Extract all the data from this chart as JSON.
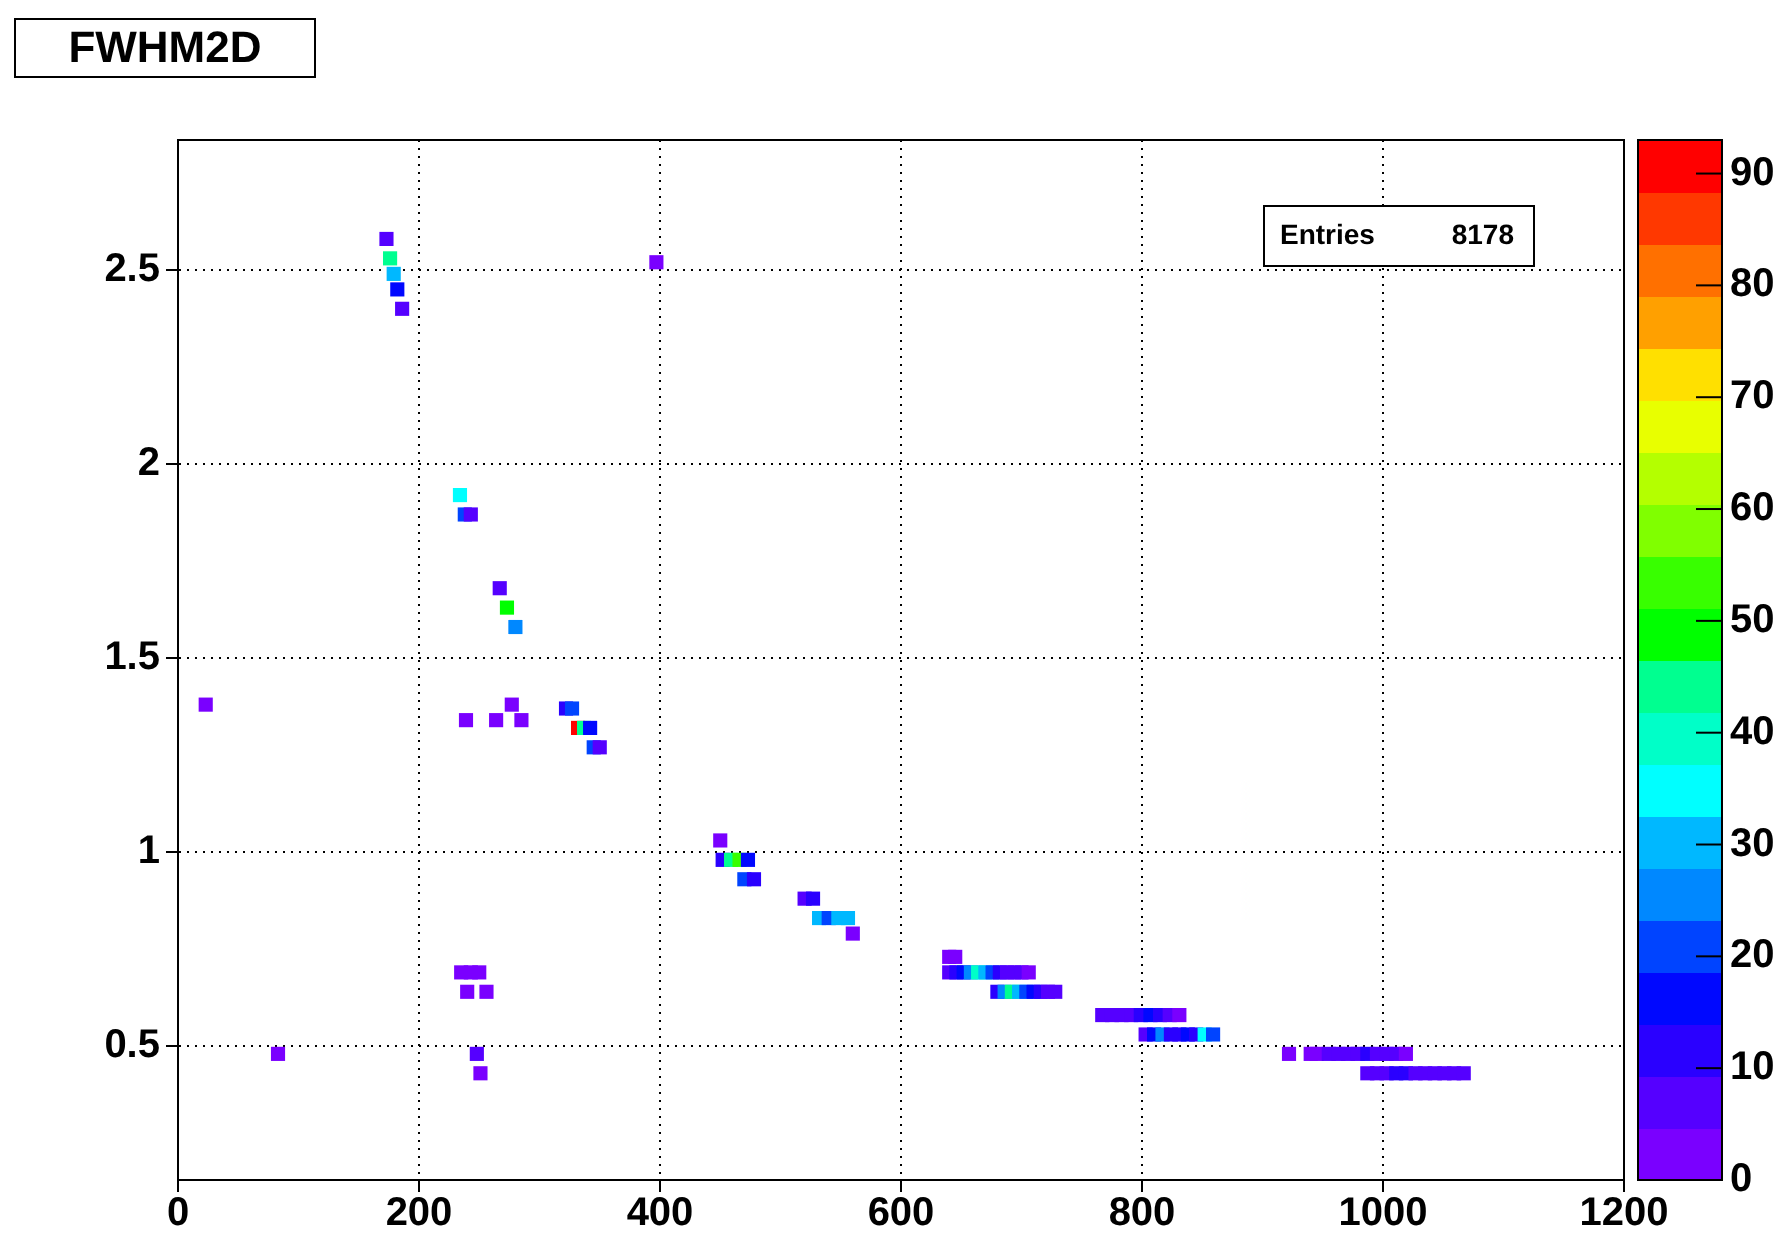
{
  "chart_data": {
    "type": "scatter",
    "title": "FWHM2D",
    "annotations": [
      "Entries",
      "8178"
    ],
    "xlim": [
      0,
      1200
    ],
    "xticks": [
      0,
      200,
      400,
      600,
      800,
      1000,
      1200
    ],
    "ylim": [
      0.155,
      2.835
    ],
    "yticks": [
      {
        "value": 0.5,
        "label": "0.5"
      },
      1,
      {
        "value": 1.5,
        "label": "1.5"
      },
      2,
      {
        "value": 2.5,
        "label": "2.5"
      }
    ],
    "grid": true,
    "legend": false,
    "marker": "square",
    "clim": [
      0,
      93
    ],
    "cticks": [
      0,
      10,
      20,
      30,
      40,
      50,
      60,
      70,
      80,
      90
    ],
    "series": [
      {
        "x": [
          173,
          176,
          179,
          182,
          186,
          397,
          234,
          238,
          243,
          267,
          273,
          280,
          322,
          327,
          332,
          337,
          342,
          345,
          350,
          23,
          239,
          264,
          277,
          285,
          450,
          452,
          459,
          466,
          473,
          470,
          478,
          520,
          527,
          532,
          540,
          548,
          556,
          560,
          640,
          645,
          640,
          646,
          652,
          658,
          664,
          670,
          676,
          682,
          688,
          694,
          700,
          706,
          680,
          686,
          692,
          698,
          704,
          710,
          716,
          722,
          728,
          767,
          775,
          783,
          791,
          799,
          807,
          815,
          823,
          831,
          803,
          810,
          817,
          824,
          831,
          838,
          845,
          852,
          859,
          922,
          940,
          945,
          955,
          963,
          971,
          979,
          987,
          995,
          1003,
          1011,
          1019,
          987,
          995,
          1003,
          1011,
          1019,
          1027,
          1035,
          1043,
          1051,
          1059,
          1067,
          235,
          243,
          250,
          240,
          256,
          83,
          248,
          251
        ],
        "values": [
          2.58,
          2.53,
          2.49,
          2.45,
          2.4,
          2.52,
          1.92,
          1.87,
          1.87,
          1.68,
          1.63,
          1.58,
          1.37,
          1.37,
          1.32,
          1.32,
          1.32,
          1.27,
          1.27,
          1.38,
          1.34,
          1.34,
          1.38,
          1.34,
          1.03,
          0.98,
          0.98,
          0.98,
          0.98,
          0.93,
          0.93,
          0.88,
          0.88,
          0.83,
          0.83,
          0.83,
          0.83,
          0.79,
          0.73,
          0.73,
          0.69,
          0.69,
          0.69,
          0.69,
          0.69,
          0.69,
          0.69,
          0.69,
          0.69,
          0.69,
          0.69,
          0.69,
          0.64,
          0.64,
          0.64,
          0.64,
          0.64,
          0.64,
          0.64,
          0.64,
          0.64,
          0.58,
          0.58,
          0.58,
          0.58,
          0.58,
          0.58,
          0.58,
          0.58,
          0.58,
          0.53,
          0.53,
          0.53,
          0.53,
          0.53,
          0.53,
          0.53,
          0.53,
          0.53,
          0.48,
          0.48,
          0.48,
          0.48,
          0.48,
          0.48,
          0.48,
          0.48,
          0.48,
          0.48,
          0.48,
          0.48,
          0.43,
          0.43,
          0.43,
          0.43,
          0.43,
          0.43,
          0.43,
          0.43,
          0.43,
          0.43,
          0.43,
          0.69,
          0.69,
          0.69,
          0.64,
          0.64,
          0.48,
          0.48,
          0.43
        ],
        "cvalues": [
          5,
          45,
          30,
          15,
          5,
          3,
          35,
          20,
          5,
          5,
          50,
          25,
          10,
          20,
          90,
          45,
          15,
          20,
          8,
          3,
          3,
          3,
          3,
          3,
          3,
          10,
          45,
          55,
          15,
          20,
          12,
          5,
          10,
          30,
          20,
          30,
          28,
          3,
          3,
          3,
          5,
          10,
          15,
          25,
          38,
          30,
          20,
          10,
          8,
          5,
          5,
          3,
          10,
          25,
          45,
          30,
          20,
          15,
          10,
          8,
          5,
          5,
          5,
          5,
          5,
          10,
          15,
          10,
          5,
          3,
          5,
          15,
          25,
          10,
          10,
          15,
          12,
          35,
          20,
          3,
          3,
          3,
          5,
          5,
          5,
          5,
          10,
          8,
          5,
          5,
          3,
          5,
          5,
          5,
          10,
          10,
          5,
          5,
          5,
          5,
          5,
          5,
          3,
          3,
          3,
          3,
          3,
          3,
          5,
          3
        ]
      }
    ]
  }
}
